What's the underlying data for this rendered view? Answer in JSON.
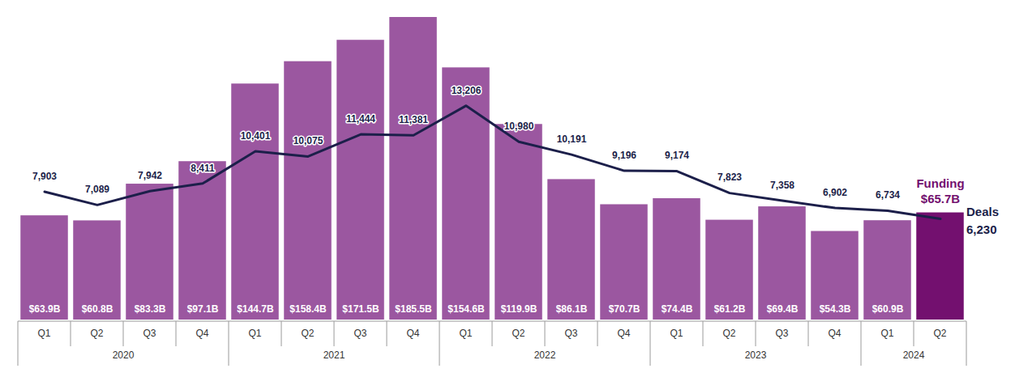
{
  "chart_data": {
    "type": "bar",
    "categories": [
      "Q1",
      "Q2",
      "Q3",
      "Q4",
      "Q1",
      "Q2",
      "Q3",
      "Q4",
      "Q1",
      "Q2",
      "Q3",
      "Q4",
      "Q1",
      "Q2",
      "Q3",
      "Q4",
      "Q1",
      "Q2"
    ],
    "year_labels": [
      "2020",
      "2020",
      "2020",
      "2020",
      "2021",
      "2021",
      "2021",
      "2021",
      "2022",
      "2022",
      "2022",
      "2022",
      "2023",
      "2023",
      "2023",
      "2023",
      "2024",
      "2024"
    ],
    "series": [
      {
        "name": "Funding",
        "type": "bar",
        "values": [
          63.9,
          60.8,
          83.3,
          97.1,
          144.7,
          158.4,
          171.5,
          185.5,
          154.6,
          119.9,
          86.1,
          70.7,
          74.4,
          61.2,
          69.4,
          54.3,
          60.9,
          65.7
        ],
        "value_labels": [
          "$63.9B",
          "$60.8B",
          "$83.3B",
          "$97.1B",
          "$144.7B",
          "$158.4B",
          "$171.5B",
          "$185.5B",
          "$154.6B",
          "$119.9B",
          "$86.1B",
          "$70.7B",
          "$74.4B",
          "$61.2B",
          "$69.4B",
          "$54.3B",
          "$60.9B",
          "$65.7B"
        ],
        "colors": [
          "#9b57a0",
          "#9b57a0",
          "#9b57a0",
          "#9b57a0",
          "#9b57a0",
          "#9b57a0",
          "#9b57a0",
          "#9b57a0",
          "#9b57a0",
          "#9b57a0",
          "#9b57a0",
          "#9b57a0",
          "#9b57a0",
          "#9b57a0",
          "#9b57a0",
          "#9b57a0",
          "#9b57a0",
          "#73106f"
        ]
      },
      {
        "name": "Deals",
        "type": "line",
        "axis": "y2",
        "color": "#1c1f4a",
        "values": [
          7903,
          7089,
          7942,
          8411,
          10401,
          10075,
          11444,
          11381,
          13206,
          10980,
          10191,
          9196,
          9174,
          7823,
          7358,
          6902,
          6734,
          6230
        ],
        "value_labels": [
          "7,903",
          "7,089",
          "7,942",
          "8,411",
          "10,401",
          "10,075",
          "11,444",
          "11,381",
          "13,206",
          "10,980",
          "10,191",
          "9,196",
          "9,174",
          "7,823",
          "7,358",
          "6,902",
          "6,734",
          "6,230"
        ]
      }
    ],
    "ylim": [
      0,
      186
    ],
    "y2lim": [
      0,
      18700
    ],
    "data_labels": true,
    "tick_labels": "x"
  }
}
